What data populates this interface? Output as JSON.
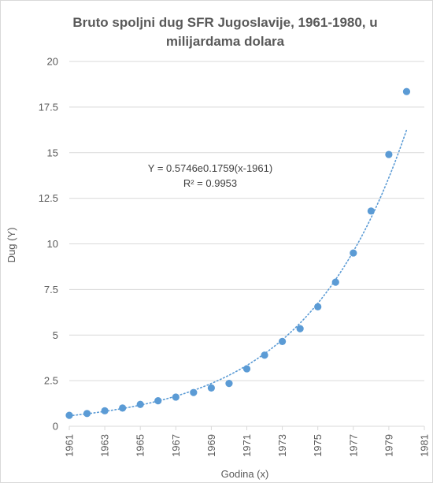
{
  "colors": {
    "marker": "#5b9bd5",
    "trendline": "#5b9bd5",
    "gridline": "#d9d9d9",
    "text": "#595959"
  },
  "chart_data": {
    "type": "scatter",
    "title_line1": "Bruto spoljni dug SFR Jugoslavije, 1961-1980, u",
    "title_line2": "milijardama dolara",
    "xlabel": "Godina (x)",
    "ylabel": "Dug (Y)",
    "xlim": [
      1961,
      1981
    ],
    "ylim": [
      0,
      20
    ],
    "grid": true,
    "legend": "none",
    "x_ticks": [
      1961,
      1963,
      1965,
      1967,
      1969,
      1971,
      1973,
      1975,
      1977,
      1979,
      1981
    ],
    "y_ticks": [
      {
        "value": 0,
        "label": "0"
      },
      {
        "value": 2.5,
        "label": "2.5"
      },
      {
        "value": 5,
        "label": "5"
      },
      {
        "value": 7.5,
        "label": "7.5"
      },
      {
        "value": 10,
        "label": "10"
      },
      {
        "value": 12.5,
        "label": "12.5"
      },
      {
        "value": 15,
        "label": "15"
      },
      {
        "value": 17.5,
        "label": "17.5"
      },
      {
        "value": 20,
        "label": "20"
      }
    ],
    "series": [
      {
        "x": [
          1961,
          1962,
          1963,
          1964,
          1965,
          1966,
          1967,
          1968,
          1969,
          1970,
          1971,
          1972,
          1973,
          1974,
          1975,
          1976,
          1977,
          1978,
          1979,
          1980
        ],
        "y": [
          0.6,
          0.7,
          0.85,
          1.0,
          1.2,
          1.4,
          1.6,
          1.85,
          2.1,
          2.35,
          3.15,
          3.9,
          4.65,
          5.35,
          6.55,
          7.9,
          9.5,
          11.8,
          14.9,
          18.35
        ]
      }
    ],
    "trendline": {
      "type": "exponential",
      "a": 0.5746,
      "b": 0.1759,
      "x0": 1961,
      "equation_label": "Y = 0.5746e0.1759(x-1961)",
      "r2_label": "R² = 0.9953",
      "style": "dotted"
    }
  }
}
